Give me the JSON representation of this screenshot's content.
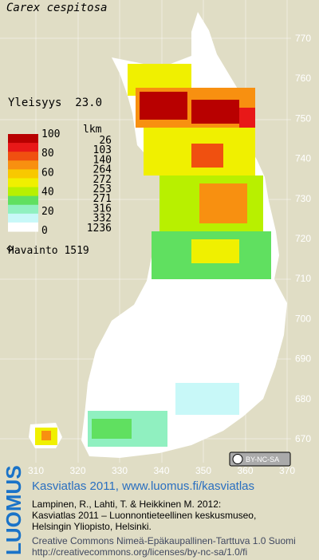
{
  "title": "Carex cespitosa",
  "frequency": "Yleisyys  23.0",
  "legend": {
    "scale": [
      100,
      80,
      60,
      40,
      20,
      0
    ],
    "count_header": "lkm",
    "counts": [
      26,
      103,
      140,
      264,
      272,
      253,
      271,
      316,
      332,
      1236
    ],
    "colors": [
      "#b80000",
      "#e81818",
      "#f05010",
      "#f89010",
      "#f8c800",
      "#f0f000",
      "#b8f000",
      "#60e060",
      "#90f0c0",
      "#c8f8f8",
      "#ffffff"
    ]
  },
  "observations": "Havainto 1519",
  "y_axis_labels": [
    770,
    760,
    750,
    740,
    730,
    720,
    710,
    700,
    690,
    680,
    670
  ],
  "x_axis_labels": [
    310,
    320,
    330,
    340,
    350,
    360,
    370
  ],
  "license_badge": "BY-NC-SA",
  "footer": {
    "logo": "LUOMUS",
    "heading": "Kasviatlas 2011, www.luomus.fi/kasviatlas",
    "citation": [
      "Lampinen, R., Lahti, T. & Heikkinen M. 2012:",
      "Kasviatlas 2011 – Luonnontieteellinen keskusmuseo,",
      "Helsingin Yliopisto, Helsinki."
    ],
    "license": [
      "Creative Commons Nimeä-Epäkaupallinen-Tarttuva 1.0 Suomi",
      "http://creativecommons.org/licenses/by-nc-sa/1.0/fi"
    ]
  }
}
